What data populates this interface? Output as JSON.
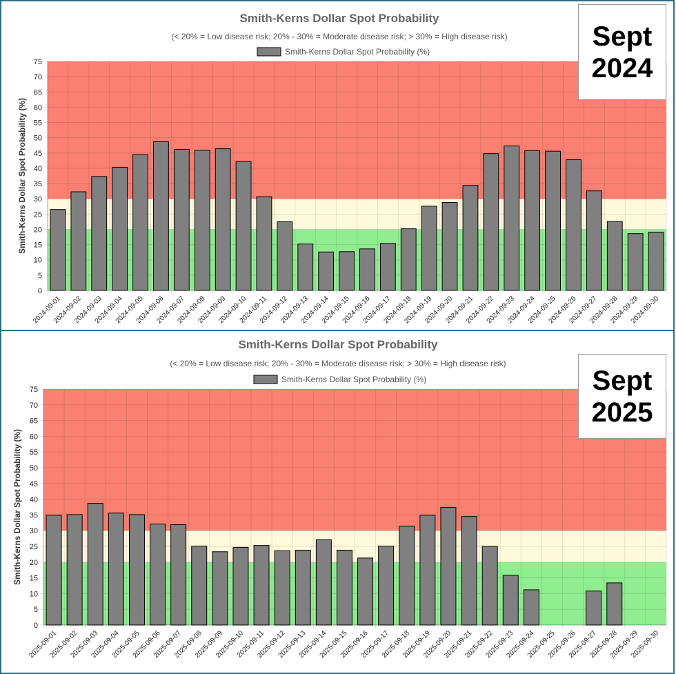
{
  "chart_data": [
    {
      "type": "bar",
      "title": "Smith-Kerns Dollar Spot Probability",
      "subtitle": "(< 20% = Low disease risk; 20% - 30% = Moderate disease risk; > 30% = High disease risk)",
      "legend": "Smith-Kerns Dollar Spot Probability (%)",
      "ylabel": "Smith-Kerns Dollar Spot Probability (%)",
      "badge_line1": "Sept",
      "badge_line2": "2024",
      "ylim": [
        0,
        75
      ],
      "yticks": [
        0,
        5,
        10,
        15,
        20,
        25,
        30,
        35,
        40,
        45,
        50,
        55,
        60,
        65,
        70,
        75
      ],
      "risk_bands": [
        {
          "from": 0,
          "to": 20,
          "color": "#90ee90"
        },
        {
          "from": 20,
          "to": 30,
          "color": "#fffadc"
        },
        {
          "from": 30,
          "to": 75,
          "color": "#fa8072"
        }
      ],
      "bar_color": "#808080",
      "categories": [
        "2024-09-01",
        "2024-09-02",
        "2024-09-03",
        "2024-09-04",
        "2024-09-05",
        "2024-09-06",
        "2024-09-07",
        "2024-09-08",
        "2024-09-09",
        "2024-09-10",
        "2024-09-11",
        "2024-09-12",
        "2024-09-13",
        "2024-09-14",
        "2024-09-15",
        "2024-09-16",
        "2024-09-17",
        "2024-09-18",
        "2024-09-19",
        "2024-09-20",
        "2024-09-21",
        "2024-09-22",
        "2024-09-23",
        "2024-09-24",
        "2024-09-25",
        "2024-09-26",
        "2024-09-27",
        "2024-09-28",
        "2024-09-29",
        "2024-09-30"
      ],
      "values": [
        26.5,
        32.3,
        37.3,
        40.3,
        44.5,
        48.7,
        46.2,
        45.9,
        46.4,
        42.2,
        30.7,
        22.5,
        15.2,
        12.6,
        12.7,
        13.6,
        15.4,
        20.2,
        27.6,
        28.8,
        34.4,
        44.8,
        47.3,
        45.8,
        45.6,
        42.8,
        32.6,
        22.6,
        18.6,
        19.1
      ]
    },
    {
      "type": "bar",
      "title": "Smith-Kerns Dollar Spot Probability",
      "subtitle": "(< 20% = Low disease risk; 20% - 30% = Moderate disease risk; > 30% = High disease risk)",
      "legend": "Smith-Kerns Dollar Spot Probability (%)",
      "ylabel": "Smith-Kerns Dollar Spot Probability (%)",
      "badge_line1": "Sept",
      "badge_line2": "2025",
      "ylim": [
        0,
        75
      ],
      "yticks": [
        0,
        5,
        10,
        15,
        20,
        25,
        30,
        35,
        40,
        45,
        50,
        55,
        60,
        65,
        70,
        75
      ],
      "risk_bands": [
        {
          "from": 0,
          "to": 20,
          "color": "#90ee90"
        },
        {
          "from": 20,
          "to": 30,
          "color": "#fffadc"
        },
        {
          "from": 30,
          "to": 75,
          "color": "#fa8072"
        }
      ],
      "bar_color": "#808080",
      "categories": [
        "2025-09-01",
        "2025-09-02",
        "2025-09-03",
        "2025-09-04",
        "2025-09-05",
        "2025-09-06",
        "2025-09-07",
        "2025-09-08",
        "2025-09-09",
        "2025-09-10",
        "2025-09-11",
        "2025-09-12",
        "2025-09-13",
        "2025-09-14",
        "2025-09-15",
        "2025-09-16",
        "2025-09-17",
        "2025-09-18",
        "2025-09-19",
        "2025-09-20",
        "2025-09-21",
        "2025-09-22",
        "2025-09-23",
        "2025-09-24",
        "2025-09-25",
        "2025-09-26",
        "2025-09-27",
        "2025-09-28",
        "2025-09-29",
        "2025-09-30"
      ],
      "values": [
        34.9,
        35.1,
        38.7,
        35.6,
        35.1,
        32.1,
        31.9,
        25.1,
        23.3,
        24.7,
        25.3,
        23.6,
        23.8,
        27.1,
        23.8,
        21.3,
        25.1,
        31.4,
        34.9,
        37.4,
        34.5,
        25.0,
        15.8,
        11.2,
        null,
        null,
        10.8,
        13.4,
        null,
        null
      ]
    }
  ]
}
